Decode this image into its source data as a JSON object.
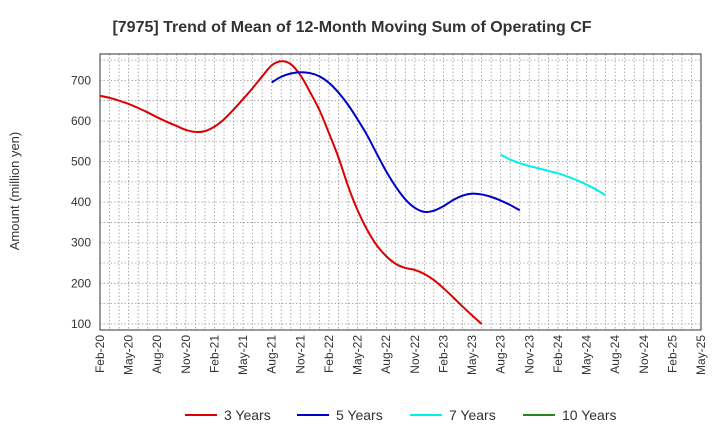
{
  "chart_data": {
    "type": "line",
    "title": "[7975]  Trend of Mean of 12-Month Moving Sum of Operating CF",
    "xlabel": "",
    "ylabel": "Amount (million yen)",
    "ylim": [
      85,
      765
    ],
    "yticks": [
      100,
      200,
      300,
      400,
      500,
      600,
      700
    ],
    "xtick_labels": [
      "Feb-20",
      "May-20",
      "Aug-20",
      "Nov-20",
      "Feb-21",
      "May-21",
      "Aug-21",
      "Nov-21",
      "Feb-22",
      "May-22",
      "Aug-22",
      "Nov-22",
      "Feb-23",
      "May-23",
      "Aug-23",
      "Nov-23",
      "Feb-24",
      "May-24",
      "Aug-24",
      "Nov-24",
      "Feb-25",
      "May-25"
    ],
    "grid": true,
    "legend_position": "bottom",
    "series": [
      {
        "name": "3 Years",
        "color": "#dd0000",
        "start_index": 0,
        "values": [
          662,
          657,
          650,
          642,
          632,
          621,
          609,
          598,
          588,
          578,
          573,
          575,
          586,
          604,
          628,
          654,
          681,
          710,
          737,
          747,
          740,
          713,
          672,
          627,
          570,
          510,
          440,
          380,
          332,
          294,
          267,
          248,
          238,
          233,
          223,
          208,
          188,
          166,
          143,
          121,
          100
        ]
      },
      {
        "name": "5 Years",
        "color": "#0000cc",
        "start_index": 18,
        "values": [
          695,
          709,
          717,
          720,
          718,
          710,
          694,
          670,
          640,
          604,
          565,
          520,
          476,
          438,
          407,
          386,
          376,
          379,
          390,
          405,
          416,
          421,
          419,
          413,
          404,
          393,
          380
        ]
      },
      {
        "name": "7 Years",
        "color": "#00eeee",
        "start_index": 42,
        "values": [
          517,
          505,
          496,
          489,
          483,
          477,
          471,
          463,
          454,
          443,
          431,
          417
        ]
      },
      {
        "name": "10 Years",
        "color": "#228822",
        "start_index": 0,
        "values": []
      }
    ]
  }
}
